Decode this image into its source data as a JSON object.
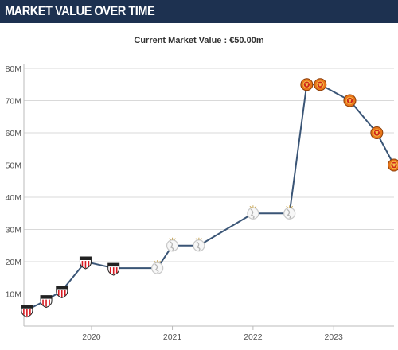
{
  "header": {
    "title": "MARKET VALUE OVER TIME"
  },
  "subtitle": "Current Market Value : €50.00m",
  "colors": {
    "header_bg": "#1d3150",
    "line": "#3a5576",
    "grid": "#d9d9d9",
    "axis_text": "#555555",
    "club_1": "#d71920",
    "club_2": "#c8c8c8",
    "club_3": "#e8761a"
  },
  "chart_data": {
    "type": "line",
    "title": "",
    "xlabel": "",
    "ylabel": "",
    "ylim": [
      0,
      80
    ],
    "xlim": [
      "2019-03-01",
      "2023-10-01"
    ],
    "grid": true,
    "y_ticks": [
      {
        "value": 10,
        "label": "10M"
      },
      {
        "value": 20,
        "label": "20M"
      },
      {
        "value": 30,
        "label": "30M"
      },
      {
        "value": 40,
        "label": "40M"
      },
      {
        "value": 50,
        "label": "50M"
      },
      {
        "value": 60,
        "label": "60M"
      },
      {
        "value": 70,
        "label": "70M"
      },
      {
        "value": 80,
        "label": "80M"
      }
    ],
    "x_ticks": [
      {
        "value": "2020-01-01",
        "label": "2020"
      },
      {
        "value": "2021-01-01",
        "label": "2021"
      },
      {
        "value": "2022-01-01",
        "label": "2022"
      },
      {
        "value": "2023-01-01",
        "label": "2023"
      }
    ],
    "points": [
      {
        "date": "2019-03-15",
        "value": 5,
        "icon": "club-1-crest-icon"
      },
      {
        "date": "2019-06-10",
        "value": 8,
        "icon": "club-1-crest-icon"
      },
      {
        "date": "2019-08-20",
        "value": 11,
        "icon": "club-1-crest-icon"
      },
      {
        "date": "2019-12-05",
        "value": 20,
        "icon": "club-1-crest-icon"
      },
      {
        "date": "2020-04-10",
        "value": 18,
        "icon": "club-1-crest-icon"
      },
      {
        "date": "2020-10-25",
        "value": 18,
        "icon": "club-2-crest-icon"
      },
      {
        "date": "2021-01-01",
        "value": 25,
        "icon": "club-2-crest-icon"
      },
      {
        "date": "2021-05-01",
        "value": 25,
        "icon": "club-2-crest-icon"
      },
      {
        "date": "2022-01-01",
        "value": 35,
        "icon": "club-2-crest-icon"
      },
      {
        "date": "2022-06-15",
        "value": 35,
        "icon": "club-2-crest-icon"
      },
      {
        "date": "2022-09-01",
        "value": 75,
        "icon": "club-3-crest-icon"
      },
      {
        "date": "2022-11-01",
        "value": 75,
        "icon": "club-3-crest-icon"
      },
      {
        "date": "2023-03-15",
        "value": 70,
        "icon": "club-3-crest-icon"
      },
      {
        "date": "2023-07-15",
        "value": 60,
        "icon": "club-3-crest-icon"
      },
      {
        "date": "2023-10-01",
        "value": 50,
        "icon": "club-3-crest-icon"
      }
    ]
  }
}
